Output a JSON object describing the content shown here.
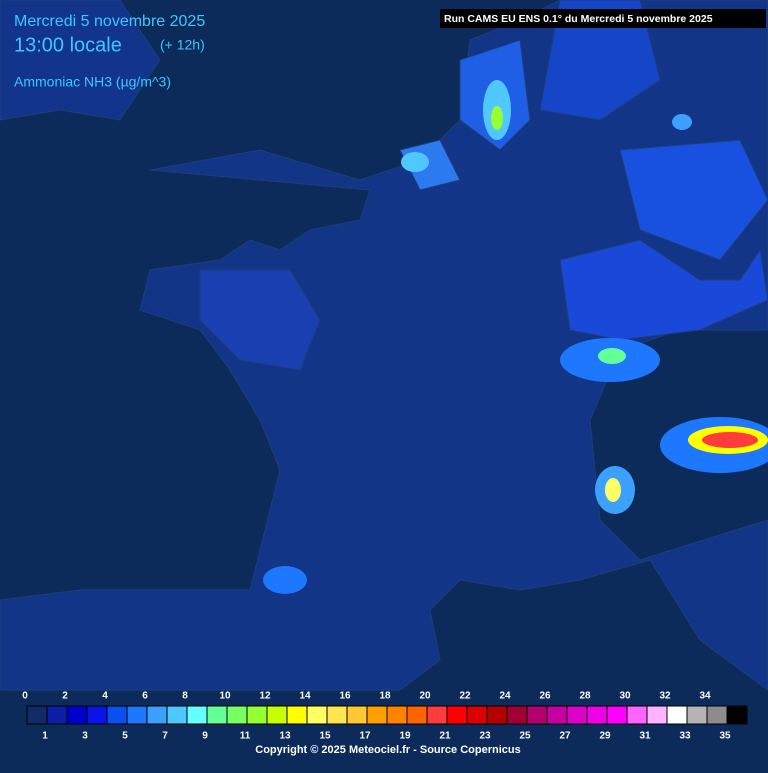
{
  "header": {
    "date": "Mercredi 5 novembre 2025",
    "time": "13:00 locale",
    "offset": "(+ 12h)",
    "variable": "Ammoniac NH3 (µg/m^3)",
    "run": "Run CAMS EU ENS 0.1° du Mercredi 5 novembre 2025"
  },
  "legend": {
    "ticks": [
      0,
      1,
      2,
      3,
      4,
      5,
      6,
      7,
      8,
      9,
      10,
      11,
      12,
      13,
      14,
      15,
      16,
      17,
      18,
      19,
      20,
      21,
      22,
      23,
      24,
      25,
      26,
      27,
      28,
      29,
      30,
      31,
      32,
      33,
      34,
      35
    ],
    "colors": [
      "#122a68",
      "#0b1fa5",
      "#0000cd",
      "#0a14e6",
      "#0a50f0",
      "#1e78ff",
      "#3ca0ff",
      "#50c8ff",
      "#64ffff",
      "#64ff96",
      "#78ff64",
      "#96ff32",
      "#c8ff00",
      "#ffff00",
      "#ffff64",
      "#ffe650",
      "#ffc832",
      "#ffa000",
      "#ff8200",
      "#ff6400",
      "#ff3c3c",
      "#ff0000",
      "#dc0000",
      "#b40000",
      "#a00032",
      "#b4006e",
      "#c800a0",
      "#dc00c8",
      "#f000e6",
      "#ff00ff",
      "#ff64ff",
      "#ffb4ff",
      "#ffffff",
      "#b4b4b4",
      "#8c8c8c",
      "#000000"
    ]
  },
  "footer": {
    "copyright": "Copyright © 2025 Meteociel.fr - Source Copernicus"
  }
}
